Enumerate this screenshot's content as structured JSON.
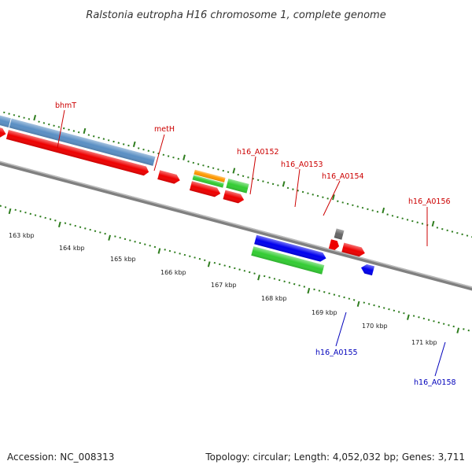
{
  "title": "Ralstonia eutropha H16 chromosome 1, complete genome",
  "footer": {
    "accession": "Accession: NC_008313",
    "summary": "Topology: circular; Length: 4,052,032 bp; Genes: 3,711"
  },
  "colors": {
    "backbone": "#808080",
    "tick": "#2e7d1e",
    "label_red": "#cc0000",
    "label_blue": "#0000bb",
    "steelblue": "#5a8fc4",
    "red": "#ee0000",
    "green": "#33cc33",
    "orange": "#ff9900",
    "blue": "#0000ee",
    "grey": "#666666",
    "purple": "#554499"
  },
  "tick_labels": [
    "163 kbp",
    "164 kbp",
    "165 kbp",
    "166 kbp",
    "167 kbp",
    "168 kbp",
    "169 kbp",
    "170 kbp",
    "171 kbp"
  ],
  "labels": [
    {
      "id": "bhmT",
      "text": "bhmT",
      "color": "red"
    },
    {
      "id": "metH",
      "text": "metH",
      "color": "red"
    },
    {
      "id": "h16_A0152",
      "text": "h16_A0152",
      "color": "red"
    },
    {
      "id": "h16_A0153",
      "text": "h16_A0153",
      "color": "red"
    },
    {
      "id": "h16_A0154",
      "text": "h16_A0154",
      "color": "red"
    },
    {
      "id": "h16_A0156",
      "text": "h16_A0156",
      "color": "red"
    },
    {
      "id": "h16_A0155",
      "text": "h16_A0155",
      "color": "blue"
    },
    {
      "id": "h16_A0158",
      "text": "h16_A0158",
      "color": "blue"
    }
  ]
}
